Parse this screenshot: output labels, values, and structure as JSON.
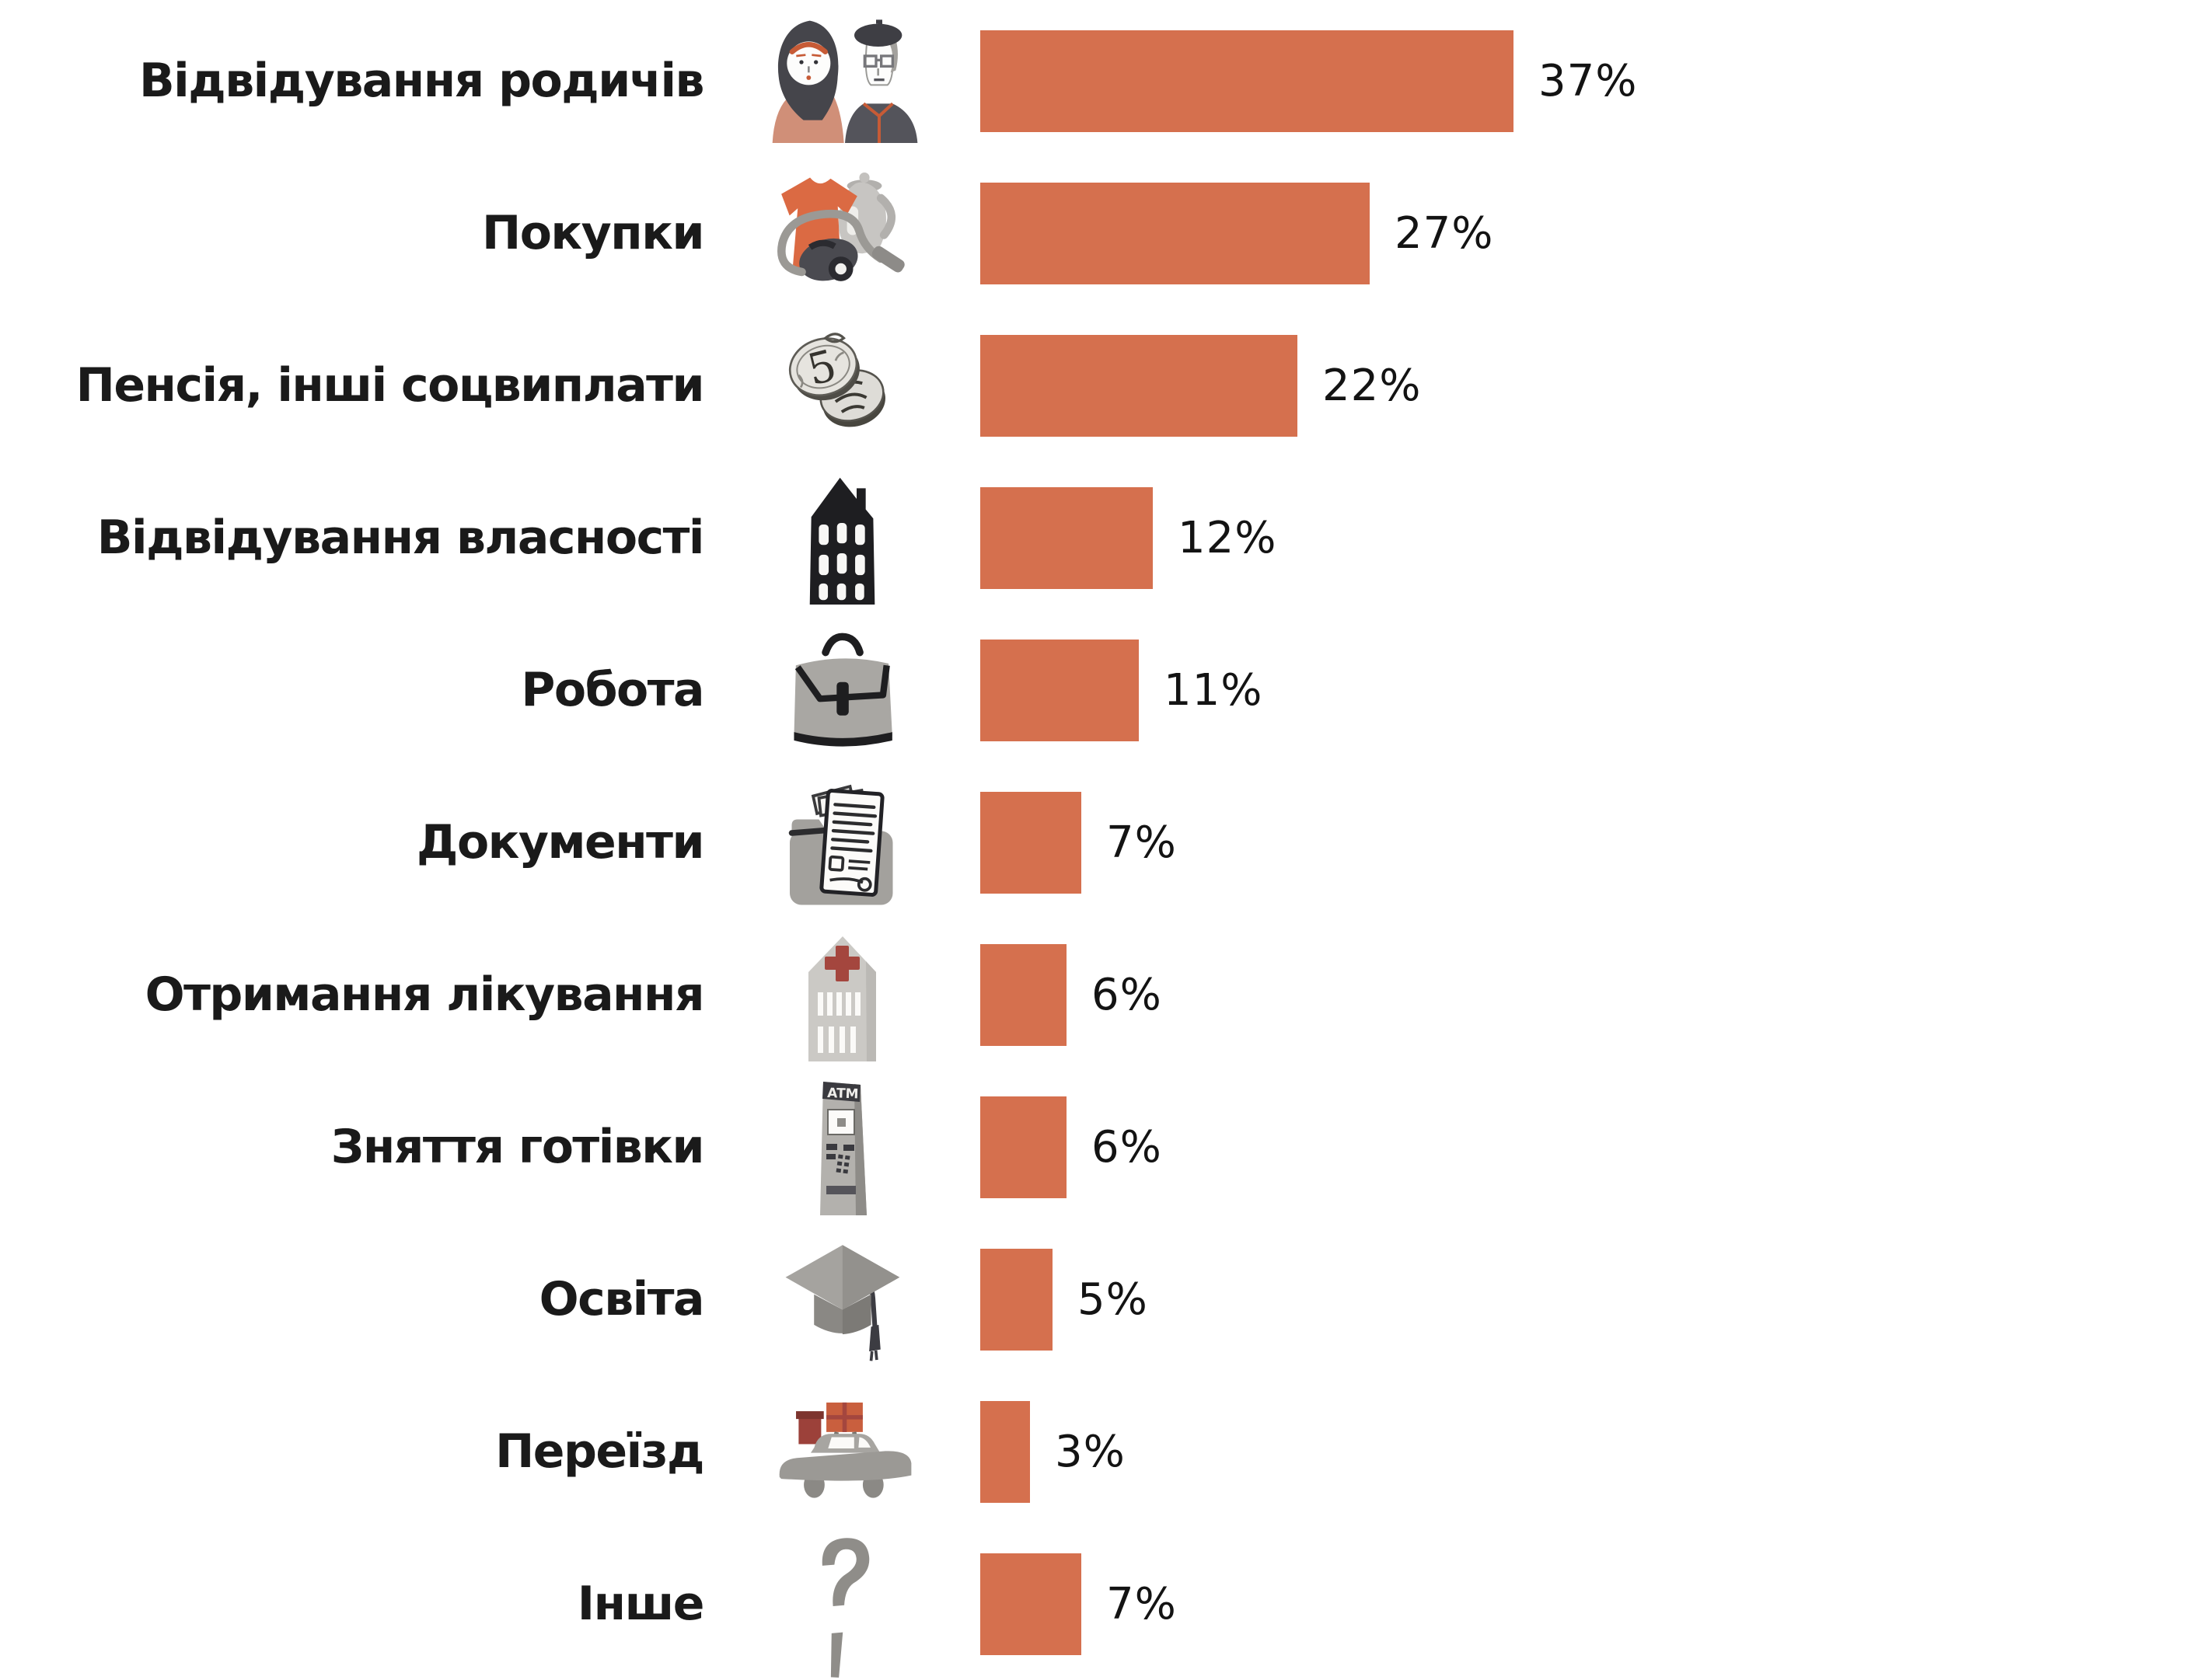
{
  "chart_data": {
    "type": "bar",
    "orientation": "horizontal",
    "title": "",
    "xlabel": "",
    "ylabel": "",
    "xlim": [
      0,
      37
    ],
    "grid": false,
    "axes_visible": false,
    "value_unit": "%",
    "legend": "none",
    "bar_color": "#D5704E",
    "label_color": "#1A1A1A",
    "value_color": "#131313",
    "background_color": "#FFFFFF",
    "categories": [
      "Відвідування родичів",
      "Покупки",
      "Пенсія, інші соцвиплати",
      "Відвідування власності",
      "Робота",
      "Документи",
      "Отримання лікування",
      "Зняття готівки",
      "Освіта",
      "Переїзд",
      "Інше"
    ],
    "values": [
      37,
      27,
      22,
      12,
      11,
      7,
      6,
      6,
      5,
      3,
      7
    ],
    "value_labels": [
      "37%",
      "27%",
      "22%",
      "12%",
      "11%",
      "7%",
      "6%",
      "6%",
      "5%",
      "3%",
      "7%"
    ],
    "icons": [
      "elderly-couple",
      "shopping-goods",
      "coins",
      "building",
      "briefcase",
      "documents-folder",
      "hospital-building",
      "atm-machine",
      "graduation-cap",
      "car-with-boxes",
      "question-mark"
    ],
    "icon_texts": {
      "atm-machine": "ATM",
      "coins": "5"
    }
  }
}
